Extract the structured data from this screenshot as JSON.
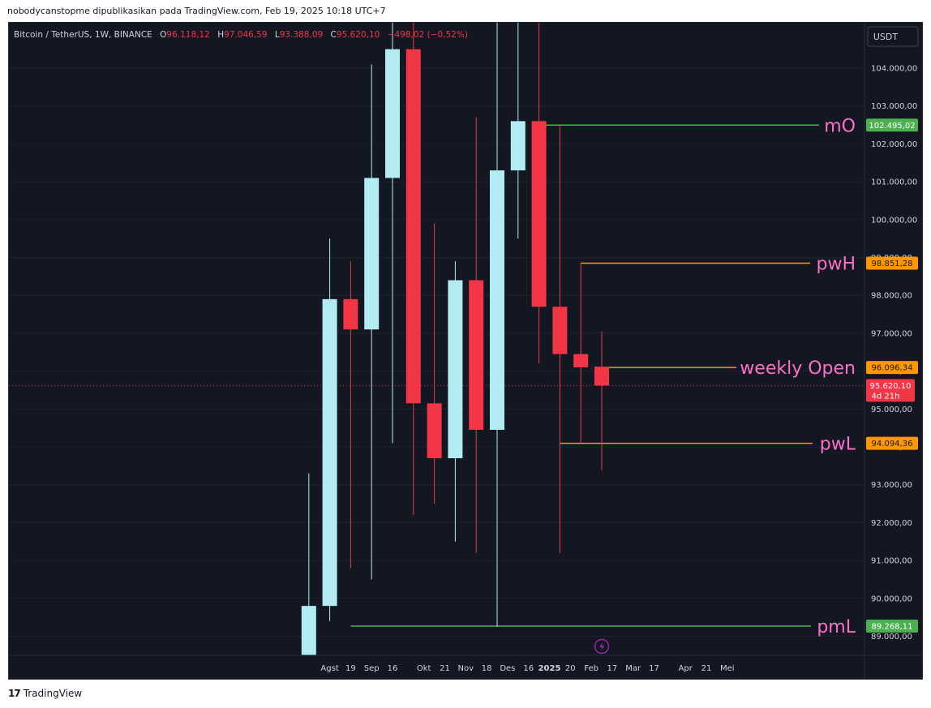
{
  "header": {
    "attribution": "nobodycanstopme dipublikasikan pada TradingView.com, Feb 19, 2025 10:18 UTC+7"
  },
  "legend": {
    "symbol": "Bitcoin / TetherUS, 1W, BINANCE",
    "o_label": "O",
    "o_value": "96.118,12",
    "h_label": "H",
    "h_value": "97.046,59",
    "l_label": "L",
    "l_value": "93.388,09",
    "c_label": "C",
    "c_value": "95.620,10",
    "change": "−498,02 (−0,52%)"
  },
  "currency_button": "USDT",
  "footer": {
    "brand": "TradingView",
    "logo": "17"
  },
  "colors": {
    "background": "#131722",
    "up": "#b2ebf2",
    "down": "#f23645",
    "green_level": "#4caf50",
    "orange_level": "#ff9800",
    "annotation": "#ff6ec7"
  },
  "chart_data": {
    "type": "candlestick",
    "symbol": "Bitcoin / TetherUS",
    "interval": "1W",
    "exchange": "BINANCE",
    "ylim": [
      88300,
      105200
    ],
    "y_ticks": [
      89000,
      90000,
      91000,
      92000,
      93000,
      94000,
      95000,
      96000,
      97000,
      98000,
      99000,
      100000,
      101000,
      102000,
      103000,
      104000
    ],
    "y_tick_labels": [
      "89.000,00",
      "90.000,00",
      "91.000,00",
      "92.000,00",
      "93.000,00",
      "94.000,00",
      "95.000,00",
      "96.000,00",
      "97.000,00",
      "98.000,00",
      "99.000,00",
      "100.000,00",
      "101.000,00",
      "102.000,00",
      "103.000,00",
      "104.000,00"
    ],
    "x_ticks": [
      {
        "slot": -13,
        "label": "Agst"
      },
      {
        "slot": -12,
        "label": "19"
      },
      {
        "slot": -11,
        "label": "Sep"
      },
      {
        "slot": -10,
        "label": "16"
      },
      {
        "slot": -8.5,
        "label": "Okt"
      },
      {
        "slot": -7.5,
        "label": "21"
      },
      {
        "slot": -6.5,
        "label": "Nov"
      },
      {
        "slot": -5.5,
        "label": "18"
      },
      {
        "slot": -4.5,
        "label": "Des"
      },
      {
        "slot": -3.5,
        "label": "16"
      },
      {
        "slot": -2.5,
        "label": "2025"
      },
      {
        "slot": -1.5,
        "label": "20"
      },
      {
        "slot": -0.5,
        "label": "Feb"
      },
      {
        "slot": 0.5,
        "label": "17"
      },
      {
        "slot": 1.5,
        "label": "Mar"
      },
      {
        "slot": 2.5,
        "label": "17"
      },
      {
        "slot": 4,
        "label": "Apr"
      },
      {
        "slot": 5,
        "label": "21"
      },
      {
        "slot": 6,
        "label": "Mei"
      }
    ],
    "candles": [
      {
        "o": 88300,
        "h": 93300,
        "l": 88300,
        "c": 89800
      },
      {
        "o": 89800,
        "h": 99500,
        "l": 89400,
        "c": 97900
      },
      {
        "o": 97900,
        "h": 98900,
        "l": 90800,
        "c": 97100
      },
      {
        "o": 97100,
        "h": 104100,
        "l": 90500,
        "c": 101100
      },
      {
        "o": 101100,
        "h": 105200,
        "l": 94100,
        "c": 104500
      },
      {
        "o": 104500,
        "h": 105200,
        "l": 92200,
        "c": 95150
      },
      {
        "o": 95150,
        "h": 99900,
        "l": 92500,
        "c": 93700
      },
      {
        "o": 93700,
        "h": 98900,
        "l": 91500,
        "c": 98400
      },
      {
        "o": 98400,
        "h": 102700,
        "l": 91200,
        "c": 94450
      },
      {
        "o": 94450,
        "h": 105200,
        "l": 89250,
        "c": 101300
      },
      {
        "o": 101300,
        "h": 105200,
        "l": 99500,
        "c": 102600
      },
      {
        "o": 102600,
        "h": 105200,
        "l": 96200,
        "c": 97700
      },
      {
        "o": 97700,
        "h": 102500,
        "l": 91200,
        "c": 96450
      },
      {
        "o": 96450,
        "h": 98850,
        "l": 94100,
        "c": 96100
      },
      {
        "o": 96118.12,
        "h": 97046.59,
        "l": 93388.09,
        "c": 95620.1
      }
    ],
    "levels": [
      {
        "name": "mO",
        "value": 102495.02,
        "label": "102.495,02",
        "color": "green",
        "from_candle": 11
      },
      {
        "name": "pwH",
        "value": 98851.28,
        "label": "98.851,28",
        "color": "orange",
        "from_candle": 13
      },
      {
        "name": "weekly Open",
        "value": 96096.34,
        "label": "96.096,34",
        "color": "orange",
        "from_candle": 14
      },
      {
        "name": "pwL",
        "value": 94094.36,
        "label": "94.094,36",
        "color": "orange",
        "from_candle": 12
      },
      {
        "name": "pmL",
        "value": 89268.11,
        "label": "89.268,11",
        "color": "green",
        "from_candle": 2
      }
    ],
    "last_price": {
      "value": 95620.1,
      "label": "95.620,10",
      "countdown": "4d 21h"
    }
  }
}
